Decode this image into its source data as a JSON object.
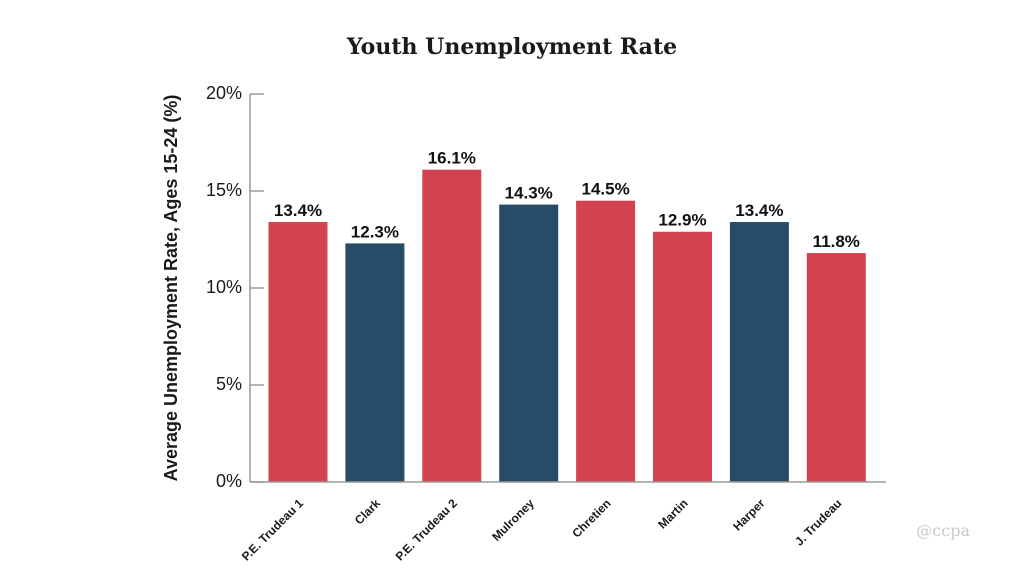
{
  "chart_data": {
    "type": "bar",
    "title": "Youth Unemployment Rate",
    "ylabel": "Average Unemployment Rate, Ages 15-24 (%)",
    "xlabel": "",
    "ylim": [
      0,
      20
    ],
    "yticks": [
      {
        "value": 0,
        "label": "0%"
      },
      {
        "value": 5,
        "label": "5%"
      },
      {
        "value": 10,
        "label": "10%"
      },
      {
        "value": 15,
        "label": "15%"
      },
      {
        "value": 20,
        "label": "20%"
      }
    ],
    "categories": [
      "P.E. Trudeau 1",
      "Clark",
      "P.E. Trudeau 2",
      "Mulroney",
      "Chretien",
      "Martin",
      "Harper",
      "J. Trudeau"
    ],
    "values": [
      13.4,
      12.3,
      16.1,
      14.3,
      14.5,
      12.9,
      13.4,
      11.8
    ],
    "value_labels": [
      "13.4%",
      "12.3%",
      "16.1%",
      "14.3%",
      "14.5%",
      "12.9%",
      "13.4%",
      "11.8%"
    ],
    "bar_colors": [
      "#d3434f",
      "#274c67",
      "#d3434f",
      "#274c67",
      "#d3434f",
      "#d3434f",
      "#274c67",
      "#d3434f"
    ],
    "grid": false,
    "legend": "none"
  },
  "watermark": "@ccpa",
  "colors": {
    "axis": "#9a9a9a",
    "red": "#d3434f",
    "blue": "#274c67"
  }
}
